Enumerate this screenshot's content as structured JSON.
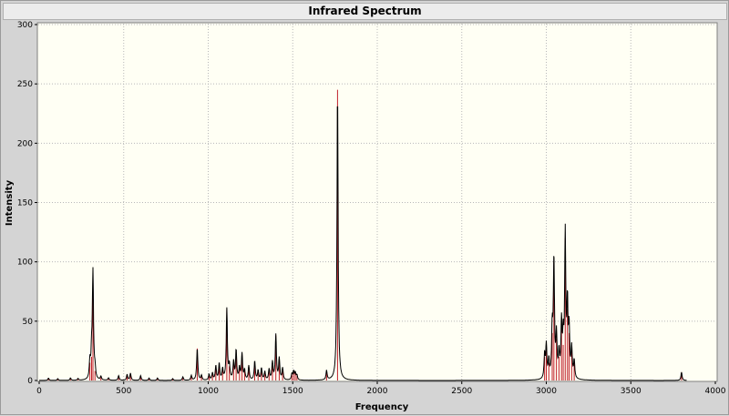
{
  "window": {
    "title": "Infrared Spectrum"
  },
  "chart_data": {
    "type": "line",
    "title": "Infrared Spectrum",
    "xlabel": "Frequency",
    "ylabel": "Intensity",
    "xlim": [
      0,
      4000
    ],
    "ylim": [
      0,
      300
    ],
    "x_ticks": [
      "0",
      "500",
      "1000",
      "1500",
      "2000",
      "2500",
      "3000",
      "3500",
      "4000"
    ],
    "y_ticks": [
      "0",
      "50",
      "100",
      "150",
      "200",
      "250",
      "300"
    ],
    "grid": true,
    "colors": {
      "spectrum": "#000000",
      "stick": "#c0202a",
      "plot_bg": "#fffff4",
      "grid": "#b8b8b8"
    },
    "series": [
      {
        "kind": "stick_spectrum",
        "peaks": [
          {
            "x": 55,
            "y": 2
          },
          {
            "x": 110,
            "y": 1.5
          },
          {
            "x": 185,
            "y": 2
          },
          {
            "x": 230,
            "y": 1.5
          },
          {
            "x": 300,
            "y": 15
          },
          {
            "x": 310,
            "y": 20
          },
          {
            "x": 318,
            "y": 90
          },
          {
            "x": 330,
            "y": 8
          },
          {
            "x": 365,
            "y": 3
          },
          {
            "x": 410,
            "y": 2
          },
          {
            "x": 470,
            "y": 4
          },
          {
            "x": 520,
            "y": 5
          },
          {
            "x": 540,
            "y": 6
          },
          {
            "x": 600,
            "y": 4
          },
          {
            "x": 650,
            "y": 2
          },
          {
            "x": 700,
            "y": 2
          },
          {
            "x": 790,
            "y": 1.5
          },
          {
            "x": 850,
            "y": 3
          },
          {
            "x": 900,
            "y": 4
          },
          {
            "x": 935,
            "y": 27
          },
          {
            "x": 960,
            "y": 4
          },
          {
            "x": 1005,
            "y": 5
          },
          {
            "x": 1025,
            "y": 6
          },
          {
            "x": 1045,
            "y": 12
          },
          {
            "x": 1065,
            "y": 14
          },
          {
            "x": 1085,
            "y": 9
          },
          {
            "x": 1110,
            "y": 60
          },
          {
            "x": 1125,
            "y": 12
          },
          {
            "x": 1150,
            "y": 15
          },
          {
            "x": 1165,
            "y": 25
          },
          {
            "x": 1185,
            "y": 10
          },
          {
            "x": 1200,
            "y": 22
          },
          {
            "x": 1215,
            "y": 8
          },
          {
            "x": 1240,
            "y": 12
          },
          {
            "x": 1275,
            "y": 16
          },
          {
            "x": 1295,
            "y": 8
          },
          {
            "x": 1315,
            "y": 10
          },
          {
            "x": 1335,
            "y": 7
          },
          {
            "x": 1360,
            "y": 9
          },
          {
            "x": 1380,
            "y": 15
          },
          {
            "x": 1400,
            "y": 38
          },
          {
            "x": 1420,
            "y": 18
          },
          {
            "x": 1440,
            "y": 10
          },
          {
            "x": 1495,
            "y": 5
          },
          {
            "x": 1505,
            "y": 7
          },
          {
            "x": 1515,
            "y": 6
          },
          {
            "x": 1525,
            "y": 4
          },
          {
            "x": 1700,
            "y": 8
          },
          {
            "x": 1765,
            "y": 245
          },
          {
            "x": 2990,
            "y": 20
          },
          {
            "x": 3000,
            "y": 28
          },
          {
            "x": 3015,
            "y": 15
          },
          {
            "x": 3035,
            "y": 40
          },
          {
            "x": 3045,
            "y": 100
          },
          {
            "x": 3060,
            "y": 35
          },
          {
            "x": 3075,
            "y": 20
          },
          {
            "x": 3090,
            "y": 45
          },
          {
            "x": 3100,
            "y": 30
          },
          {
            "x": 3112,
            "y": 120
          },
          {
            "x": 3125,
            "y": 60
          },
          {
            "x": 3135,
            "y": 40
          },
          {
            "x": 3150,
            "y": 25
          },
          {
            "x": 3165,
            "y": 15
          },
          {
            "x": 3800,
            "y": 7
          }
        ]
      }
    ]
  }
}
